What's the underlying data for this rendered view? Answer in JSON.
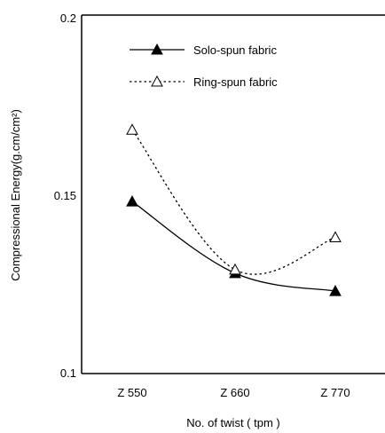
{
  "chart_data": {
    "type": "line",
    "title": "",
    "xlabel": "No. of twist ( tpm )",
    "ylabel": "Compressional Energy(g.cm/cm²)",
    "categories": [
      "Z 550",
      "Z 660",
      "Z 770"
    ],
    "ylim": [
      0.1,
      0.2
    ],
    "yticks": [
      "0.1",
      "0.15",
      "0.2"
    ],
    "legend_position": "top-center",
    "grid": false,
    "series": [
      {
        "name": "Solo-spun fabric",
        "values": [
          0.148,
          0.128,
          0.123
        ],
        "line_style": "solid",
        "marker": "filled-triangle",
        "color": "#000000"
      },
      {
        "name": "Ring-spun fabric",
        "values": [
          0.168,
          0.129,
          0.138
        ],
        "line_style": "dotted",
        "marker": "open-triangle",
        "color": "#000000"
      }
    ]
  }
}
